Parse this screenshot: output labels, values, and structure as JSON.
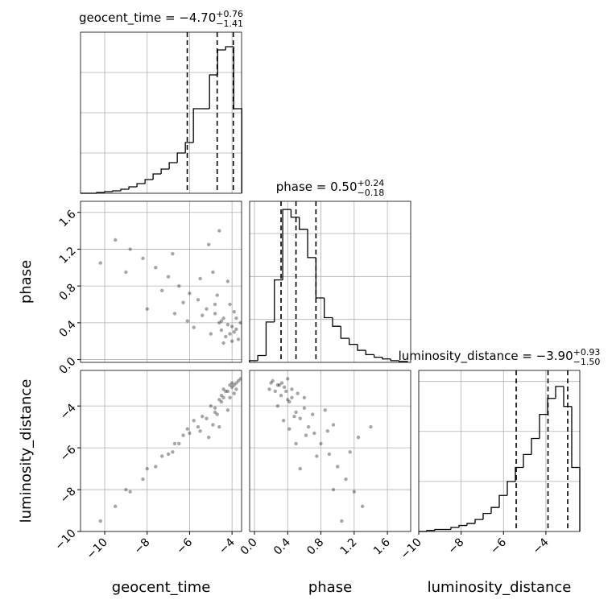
{
  "chart_data": {
    "type": "corner",
    "parameters": [
      {
        "name": "geocent_time",
        "title_main": "geocent_time = −4.70",
        "title_sup": "+0.76",
        "title_sub": "−1.41",
        "quantiles": [
          -6.11,
          -4.7,
          -3.94
        ],
        "xlim": [
          -11.14,
          -3.55
        ],
        "ticks": [
          {
            "value": -10,
            "label": "−10"
          },
          {
            "value": -8,
            "label": "−8"
          },
          {
            "value": -6,
            "label": "−6"
          },
          {
            "value": -4,
            "label": "−4"
          }
        ],
        "bins": [
          -11.14,
          -10.76,
          -10.38,
          -10.0,
          -9.62,
          -9.24,
          -8.86,
          -8.48,
          -8.1,
          -7.72,
          -7.34,
          -6.96,
          -6.58,
          -6.2,
          -5.82,
          -5.44,
          -5.06,
          -4.68,
          -4.3,
          -3.92,
          -3.54
        ],
        "counts": [
          0,
          0,
          1,
          2,
          3,
          5,
          8,
          12,
          17,
          24,
          30,
          38,
          50,
          63,
          105,
          105,
          147,
          178,
          182,
          105
        ],
        "hist_ylim": [
          0,
          200
        ],
        "hist_yticks": [
          50,
          100,
          150
        ]
      },
      {
        "name": "phase",
        "title_main": "phase = 0.50",
        "title_sup": "+0.24",
        "title_sub": "−0.18",
        "quantiles": [
          0.32,
          0.5,
          0.74
        ],
        "xlim": [
          -0.058,
          1.88
        ],
        "ylim": [
          -0.03,
          1.72
        ],
        "ticks": [
          {
            "value": 0,
            "label": "0.0"
          },
          0.4,
          0.8,
          1.2,
          1.6
        ],
        "bins": [
          -0.06,
          0.04,
          0.14,
          0.24,
          0.34,
          0.44,
          0.54,
          0.64,
          0.74,
          0.84,
          0.94,
          1.04,
          1.14,
          1.24,
          1.34,
          1.44,
          1.54,
          1.64,
          1.74,
          1.84
        ],
        "counts": [
          2,
          8,
          47,
          96,
          178,
          169,
          155,
          122,
          75,
          52,
          42,
          28,
          21,
          14,
          9,
          6,
          4,
          2,
          1
        ],
        "hist_ylim": [
          0,
          187.5
        ],
        "hist_yticks": [
          50,
          100,
          150
        ]
      },
      {
        "name": "luminosity_distance",
        "title_main": "luminosity_distance = −3.90",
        "title_sup": "+0.93",
        "title_sub": "−1.50",
        "quantiles": [
          -5.4,
          -3.9,
          -2.97
        ],
        "xlim": [
          -10,
          -2.4
        ],
        "ylim": [
          -10,
          -2.3
        ],
        "ticks": [
          {
            "value": -10,
            "label": "−10"
          },
          {
            "value": -8,
            "label": "−8"
          },
          {
            "value": -6,
            "label": "−6"
          },
          {
            "value": -4,
            "label": "−4"
          }
        ],
        "bins": [
          -10,
          -9.62,
          -9.24,
          -8.86,
          -8.48,
          -8.1,
          -7.72,
          -7.34,
          -6.96,
          -6.58,
          -6.2,
          -5.82,
          -5.44,
          -5.06,
          -4.68,
          -4.3,
          -3.92,
          -3.54,
          -3.16,
          -2.78,
          -2.4
        ],
        "counts": [
          0,
          1,
          2,
          2,
          4,
          6,
          8,
          12,
          18,
          24,
          36,
          50,
          64,
          77,
          93,
          117,
          133,
          145,
          125,
          64
        ],
        "hist_ylim": [
          0,
          161
        ],
        "hist_yticks": [
          50,
          100,
          150
        ]
      }
    ],
    "samples": [
      [
        -4.2,
        0.38,
        -3.3
      ],
      [
        -4.5,
        0.42,
        -3.8
      ],
      [
        -3.9,
        0.3,
        -3.0
      ],
      [
        -4.0,
        0.36,
        -3.1
      ],
      [
        -4.8,
        0.5,
        -4.3
      ],
      [
        -5.2,
        0.55,
        -4.6
      ],
      [
        -4.4,
        0.45,
        -3.6
      ],
      [
        -3.8,
        0.33,
        -2.9
      ],
      [
        -4.1,
        0.6,
        -3.6
      ],
      [
        -4.6,
        0.4,
        -3.7
      ],
      [
        -5.6,
        0.65,
        -5.0
      ],
      [
        -6.0,
        0.72,
        -5.3
      ],
      [
        -6.5,
        0.8,
        -5.8
      ],
      [
        -7.0,
        0.9,
        -6.3
      ],
      [
        -7.6,
        1.0,
        -6.9
      ],
      [
        -8.2,
        1.1,
        -7.5
      ],
      [
        -8.8,
        1.2,
        -8.1
      ],
      [
        -9.5,
        1.3,
        -8.8
      ],
      [
        -10.2,
        1.05,
        -9.5
      ],
      [
        -5.0,
        0.28,
        -4.0
      ],
      [
        -4.3,
        0.25,
        -3.3
      ],
      [
        -3.7,
        0.22,
        -2.8
      ],
      [
        -4.7,
        0.7,
        -4.4
      ],
      [
        -5.4,
        0.48,
        -4.5
      ],
      [
        -3.9,
        0.52,
        -3.4
      ],
      [
        -4.2,
        0.85,
        -4.2
      ],
      [
        -4.9,
        0.95,
        -4.9
      ],
      [
        -6.3,
        0.62,
        -5.4
      ],
      [
        -5.8,
        0.35,
        -4.7
      ],
      [
        -4.5,
        0.32,
        -3.5
      ],
      [
        -3.8,
        0.45,
        -3.2
      ],
      [
        -4.0,
        0.2,
        -2.9
      ],
      [
        -6.8,
        1.15,
        -6.2
      ],
      [
        -7.3,
        0.75,
        -6.4
      ],
      [
        -5.1,
        1.25,
        -5.5
      ],
      [
        -4.6,
        1.4,
        -5.0
      ],
      [
        -8.0,
        0.55,
        -7.0
      ],
      [
        -6.1,
        0.42,
        -5.1
      ],
      [
        -4.4,
        0.18,
        -3.2
      ],
      [
        -3.6,
        0.4,
        -2.7
      ],
      [
        -5.5,
        0.88,
        -5.2
      ],
      [
        -9.0,
        0.95,
        -8.0
      ],
      [
        -4.8,
        0.6,
        -4.1
      ],
      [
        -4.1,
        0.28,
        -3.0
      ],
      [
        -6.7,
        0.5,
        -5.8
      ]
    ],
    "sample_color": "#000000",
    "line_color": "#000000",
    "grid": true
  }
}
